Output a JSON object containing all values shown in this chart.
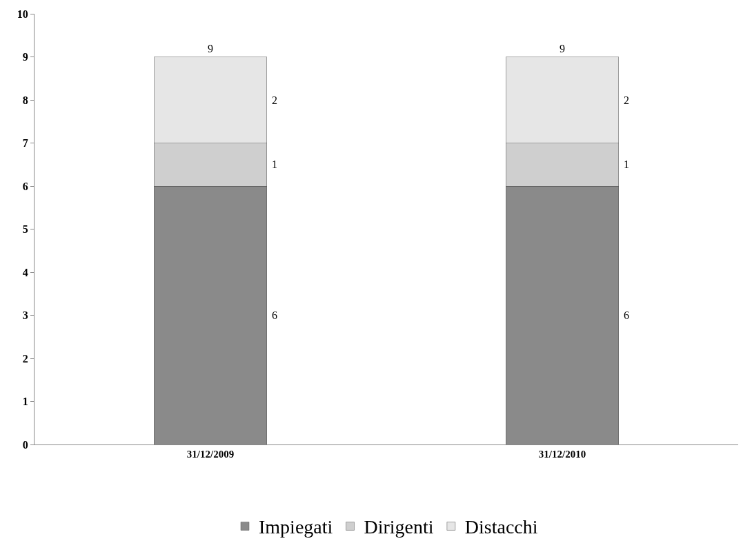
{
  "chart_data": {
    "type": "bar",
    "stacked": true,
    "categories": [
      "31/12/2009",
      "31/12/2010"
    ],
    "series": [
      {
        "name": "Impiegati",
        "color": "#8a8a8a",
        "values": [
          6,
          6
        ]
      },
      {
        "name": "Dirigenti",
        "color": "#cfcfcf",
        "values": [
          1,
          1
        ]
      },
      {
        "name": "Distacchi",
        "color": "#e6e6e6",
        "values": [
          2,
          2
        ]
      }
    ],
    "data_labels": true,
    "totals": [
      "9",
      "9"
    ],
    "ylim": [
      0,
      10
    ],
    "yticks": [
      0,
      1,
      2,
      3,
      4,
      5,
      6,
      7,
      8,
      9,
      10
    ],
    "grid": false,
    "legend": "bottom"
  }
}
